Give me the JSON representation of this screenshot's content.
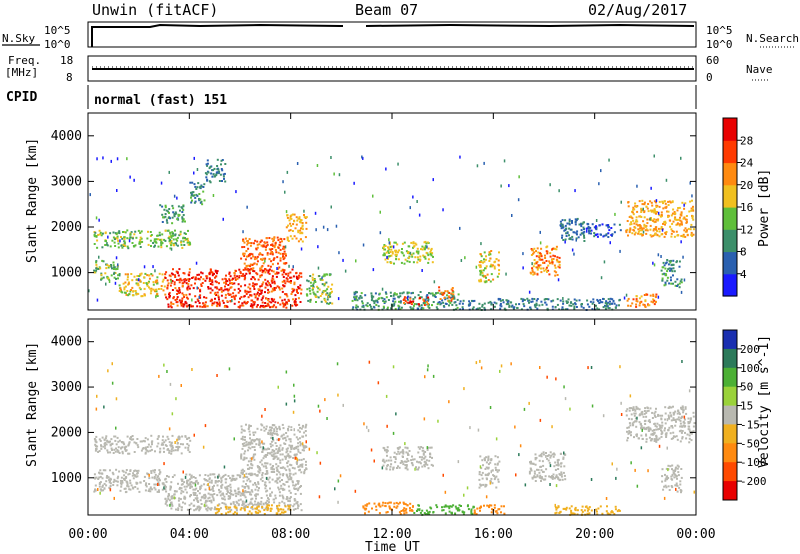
{
  "header": {
    "station": "Unwin (fitACF)",
    "beam": "Beam 07",
    "date": "02/Aug/2017"
  },
  "top_panels": {
    "nsky_label": "N.Sky",
    "nsky_top": "10^5",
    "nsky_bottom": "10^0",
    "nsearch_label": "N.Search",
    "nsearch_top": "10^5",
    "nsearch_bottom": "10^0",
    "freq_label_1": "Freq.",
    "freq_label_2": "[MHz]",
    "freq_top": "18",
    "freq_bottom": "8",
    "nave_label": "Nave",
    "nave_top": "60",
    "nave_bottom": "0",
    "cpid_label": "CPID",
    "cpid_value": "normal (fast) 151"
  },
  "axes": {
    "ylabel": "Slant Range [km]",
    "xlabel": "Time UT",
    "yticks": [
      "1000",
      "2000",
      "3000",
      "4000"
    ],
    "xticks": [
      "00:00",
      "04:00",
      "08:00",
      "12:00",
      "16:00",
      "20:00",
      "00:00"
    ]
  },
  "chart_data": [
    {
      "type": "heatmap",
      "title": "",
      "quantity": "Power",
      "colorbar_label": "Power [dB]",
      "colorbar_ticks": [
        "4",
        "8",
        "12",
        "16",
        "20",
        "24",
        "28"
      ],
      "colorbar_range": [
        0,
        32
      ],
      "colorbar_colors": [
        "#1a1aff",
        "#2a60b0",
        "#3c8f6a",
        "#5fbf3a",
        "#f0c020",
        "#ff8a10",
        "#ff3a00",
        "#e80000"
      ],
      "xlabel": "",
      "ylabel": "Slant Range [km]",
      "xlim_hours": [
        0,
        24
      ],
      "ylim_km": [
        180,
        4500
      ],
      "regions": [
        {
          "t0": 0.2,
          "t1": 4.0,
          "r0": 1550,
          "r1": 1950,
          "value": 14
        },
        {
          "t0": 2.8,
          "t1": 3.8,
          "r0": 2100,
          "r1": 2500,
          "value": 10
        },
        {
          "t0": 4.0,
          "t1": 4.6,
          "r0": 2500,
          "r1": 3000,
          "value": 10
        },
        {
          "t0": 4.6,
          "t1": 5.4,
          "r0": 3000,
          "r1": 3500,
          "value": 8
        },
        {
          "t0": 0.2,
          "t1": 1.2,
          "r0": 850,
          "r1": 1300,
          "value": 14
        },
        {
          "t0": 1.2,
          "t1": 3.0,
          "r0": 500,
          "r1": 1000,
          "value": 18
        },
        {
          "t0": 3.0,
          "t1": 8.4,
          "r0": 250,
          "r1": 1100,
          "value": 27
        },
        {
          "t0": 6.0,
          "t1": 7.8,
          "r0": 1100,
          "r1": 1800,
          "value": 24
        },
        {
          "t0": 7.8,
          "t1": 8.6,
          "r0": 1700,
          "r1": 2300,
          "value": 20
        },
        {
          "t0": 8.6,
          "t1": 9.6,
          "r0": 300,
          "r1": 1000,
          "value": 14
        },
        {
          "t0": 10.4,
          "t1": 14.6,
          "r0": 200,
          "r1": 600,
          "value": 10
        },
        {
          "t0": 11.6,
          "t1": 13.6,
          "r0": 1200,
          "r1": 1700,
          "value": 16
        },
        {
          "t0": 12.4,
          "t1": 13.4,
          "r0": 300,
          "r1": 500,
          "value": 26
        },
        {
          "t0": 13.8,
          "t1": 14.4,
          "r0": 400,
          "r1": 700,
          "value": 24
        },
        {
          "t0": 15.4,
          "t1": 16.2,
          "r0": 800,
          "r1": 1500,
          "value": 18
        },
        {
          "t0": 14.6,
          "t1": 21.0,
          "r0": 200,
          "r1": 450,
          "value": 8
        },
        {
          "t0": 17.4,
          "t1": 18.6,
          "r0": 950,
          "r1": 1600,
          "value": 22
        },
        {
          "t0": 18.6,
          "t1": 19.6,
          "r0": 1700,
          "r1": 2200,
          "value": 8
        },
        {
          "t0": 19.4,
          "t1": 21.0,
          "r0": 1800,
          "r1": 2100,
          "value": 6
        },
        {
          "t0": 21.2,
          "t1": 23.9,
          "r0": 1800,
          "r1": 2600,
          "value": 20
        },
        {
          "t0": 22.6,
          "t1": 23.4,
          "r0": 700,
          "r1": 1300,
          "value": 10
        },
        {
          "t0": 21.2,
          "t1": 22.4,
          "r0": 250,
          "r1": 550,
          "value": 22
        }
      ]
    },
    {
      "type": "heatmap",
      "title": "",
      "quantity": "Velocity",
      "colorbar_label": "Velocity [m s^-1]",
      "colorbar_ticks": [
        "200",
        "100",
        "50",
        "15",
        "-15",
        "-50",
        "-100",
        "-200"
      ],
      "colorbar_colors": [
        "#1a2fb0",
        "#2c7a5a",
        "#4cb035",
        "#9ad23a",
        "#b8b8b0",
        "#f0b020",
        "#ff8a10",
        "#ff4a00",
        "#e80000"
      ],
      "xlabel": "Time UT",
      "ylabel": "Slant Range [km]",
      "xlim_hours": [
        0,
        24
      ],
      "ylim_km": [
        180,
        4500
      ],
      "regions": [
        {
          "t0": 0.2,
          "t1": 4.0,
          "r0": 1550,
          "r1": 1950,
          "value": 0
        },
        {
          "t0": 0.2,
          "t1": 3.0,
          "r0": 700,
          "r1": 1200,
          "value": 0
        },
        {
          "t0": 3.0,
          "t1": 8.4,
          "r0": 300,
          "r1": 1100,
          "value": 0
        },
        {
          "t0": 6.0,
          "t1": 8.6,
          "r0": 1100,
          "r1": 2200,
          "value": 0
        },
        {
          "t0": 5.0,
          "t1": 8.0,
          "r0": 220,
          "r1": 420,
          "value": -40
        },
        {
          "t0": 11.6,
          "t1": 13.6,
          "r0": 1200,
          "r1": 1700,
          "value": 0
        },
        {
          "t0": 15.4,
          "t1": 16.2,
          "r0": 800,
          "r1": 1500,
          "value": 0
        },
        {
          "t0": 10.8,
          "t1": 12.8,
          "r0": 220,
          "r1": 480,
          "value": -60
        },
        {
          "t0": 12.8,
          "t1": 15.2,
          "r0": 200,
          "r1": 420,
          "value": 60
        },
        {
          "t0": 15.2,
          "t1": 16.4,
          "r0": 220,
          "r1": 420,
          "value": -70
        },
        {
          "t0": 17.4,
          "t1": 18.8,
          "r0": 950,
          "r1": 1600,
          "value": 0
        },
        {
          "t0": 18.4,
          "t1": 21.0,
          "r0": 200,
          "r1": 400,
          "value": -40
        },
        {
          "t0": 21.2,
          "t1": 23.9,
          "r0": 1800,
          "r1": 2600,
          "value": 0
        },
        {
          "t0": 22.6,
          "t1": 23.4,
          "r0": 700,
          "r1": 1300,
          "value": 0
        }
      ]
    }
  ]
}
